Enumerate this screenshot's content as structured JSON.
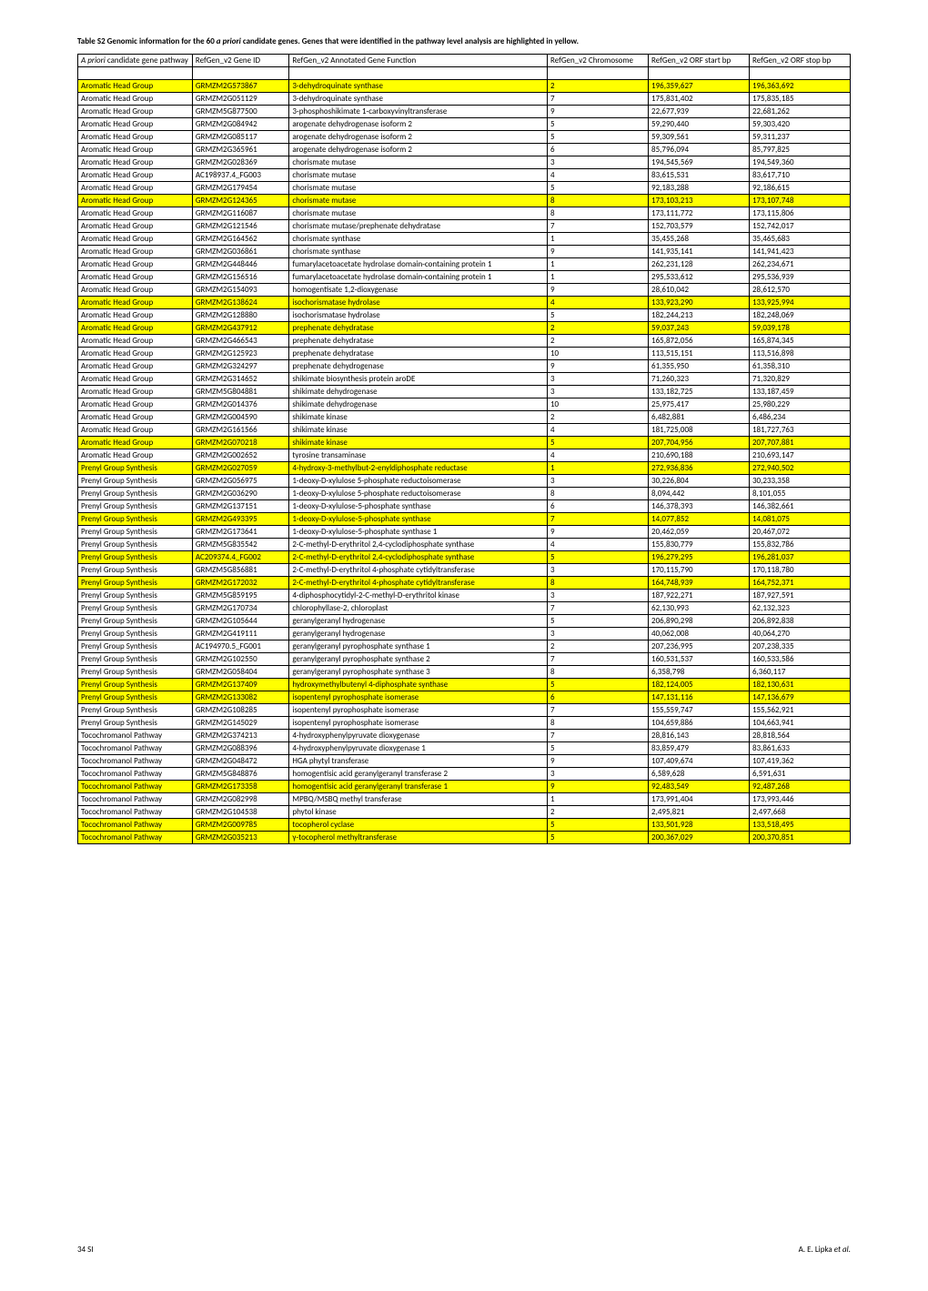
{
  "caption_prefix": "Table S2   Genomic information for the 60 ",
  "caption_italic1": "a priori",
  "caption_suffix": " candidate genes. Genes that were identified in the pathway level analysis are highlighted in yellow.",
  "headers": {
    "pathway_prefix": "A priori",
    "pathway_suffix": " candidate gene pathway",
    "geneid": "RefGen_v2 Gene ID",
    "function": "RefGen_v2 Annotated Gene Function",
    "chrom": "RefGen_v2  Chromosome",
    "start": "RefGen_v2 ORF start bp",
    "stop": "RefGen_v2 ORF stop bp"
  },
  "rows": [
    {
      "pathway": "Aromatic Head Group",
      "geneid": "GRMZM2G573867",
      "function": "3-dehydroquinate synthase",
      "chrom": "2",
      "start": "196,359,627",
      "stop": "196,363,692",
      "hl": true
    },
    {
      "pathway": "Aromatic Head Group",
      "geneid": "GRMZM2G051129",
      "function": "3-dehydroquinate synthase",
      "chrom": "7",
      "start": "175,831,402",
      "stop": "175,835,185",
      "hl": false
    },
    {
      "pathway": "Aromatic Head Group",
      "geneid": "GRMZM5G877500",
      "function": "3-phosphoshikimate 1-carboxyvinyltransferase",
      "chrom": "9",
      "start": "22,677,939",
      "stop": "22,681,262",
      "hl": false
    },
    {
      "pathway": "Aromatic Head Group",
      "geneid": "GRMZM2G084942",
      "function": "arogenate dehydrogenase isoform 2",
      "chrom": "5",
      "start": "59,290,440",
      "stop": "59,303,420",
      "hl": false
    },
    {
      "pathway": "Aromatic Head Group",
      "geneid": "GRMZM2G085117",
      "function": "arogenate dehydrogenase isoform 2",
      "chrom": "5",
      "start": "59,309,561",
      "stop": "59,311,237",
      "hl": false
    },
    {
      "pathway": "Aromatic Head Group",
      "geneid": "GRMZM2G365961",
      "function": "arogenate dehydrogenase isoform 2",
      "chrom": "6",
      "start": "85,796,094",
      "stop": "85,797,825",
      "hl": false
    },
    {
      "pathway": "Aromatic Head Group",
      "geneid": "GRMZM2G028369",
      "function": "chorismate mutase",
      "chrom": "3",
      "start": "194,545,569",
      "stop": "194,549,360",
      "hl": false
    },
    {
      "pathway": "Aromatic Head Group",
      "geneid": "AC198937.4_FG003",
      "function": "chorismate mutase",
      "chrom": "4",
      "start": "83,615,531",
      "stop": "83,617,710",
      "hl": false
    },
    {
      "pathway": "Aromatic Head Group",
      "geneid": "GRMZM2G179454",
      "function": "chorismate mutase",
      "chrom": "5",
      "start": "92,183,288",
      "stop": "92,186,615",
      "hl": false
    },
    {
      "pathway": "Aromatic Head Group",
      "geneid": "GRMZM2G124365",
      "function": "chorismate mutase",
      "chrom": "8",
      "start": "173,103,213",
      "stop": "173,107,748",
      "hl": true
    },
    {
      "pathway": "Aromatic Head Group",
      "geneid": "GRMZM2G116087",
      "function": "chorismate mutase",
      "chrom": "8",
      "start": "173,111,772",
      "stop": "173,115,806",
      "hl": false
    },
    {
      "pathway": "Aromatic Head Group",
      "geneid": "GRMZM2G121546",
      "function": "chorismate mutase/prephenate dehydratase",
      "chrom": "7",
      "start": "152,703,579",
      "stop": "152,742,017",
      "hl": false
    },
    {
      "pathway": "Aromatic Head Group",
      "geneid": "GRMZM2G164562",
      "function": "chorismate synthase",
      "chrom": "1",
      "start": "35,455,268",
      "stop": "35,465,683",
      "hl": false
    },
    {
      "pathway": "Aromatic Head Group",
      "geneid": "GRMZM2G036861",
      "function": "chorismate synthase",
      "chrom": "9",
      "start": "141,935,141",
      "stop": "141,941,423",
      "hl": false
    },
    {
      "pathway": "Aromatic Head Group",
      "geneid": "GRMZM2G448446",
      "function": "fumarylacetoacetate hydrolase domain-containing protein 1",
      "chrom": "1",
      "start": "262,231,128",
      "stop": "262,234,671",
      "hl": false
    },
    {
      "pathway": "Aromatic Head Group",
      "geneid": "GRMZM2G156516",
      "function": "fumarylacetoacetate hydrolase domain-containing protein 1",
      "chrom": "1",
      "start": "295,533,612",
      "stop": "295,536,939",
      "hl": false
    },
    {
      "pathway": "Aromatic Head Group",
      "geneid": "GRMZM2G154093",
      "function": "homogentisate 1,2-dioxygenase",
      "chrom": "9",
      "start": "28,610,042",
      "stop": "28,612,570",
      "hl": false
    },
    {
      "pathway": "Aromatic Head Group",
      "geneid": "GRMZM2G138624",
      "function": "isochorismatase hydrolase",
      "chrom": "4",
      "start": "133,923,290",
      "stop": "133,925,994",
      "hl": true
    },
    {
      "pathway": "Aromatic Head Group",
      "geneid": "GRMZM2G128880",
      "function": "isochorismatase hydrolase",
      "chrom": "5",
      "start": "182,244,213",
      "stop": "182,248,069",
      "hl": false
    },
    {
      "pathway": "Aromatic Head Group",
      "geneid": "GRMZM2G437912",
      "function": "prephenate dehydratase",
      "chrom": "2",
      "start": "59,037,243",
      "stop": "59,039,178",
      "hl": true
    },
    {
      "pathway": "Aromatic Head Group",
      "geneid": "GRMZM2G466543",
      "function": "prephenate dehydratase",
      "chrom": "2",
      "start": "165,872,056",
      "stop": "165,874,345",
      "hl": false
    },
    {
      "pathway": "Aromatic Head Group",
      "geneid": "GRMZM2G125923",
      "function": "prephenate dehydratase",
      "chrom": "10",
      "start": "113,515,151",
      "stop": "113,516,898",
      "hl": false
    },
    {
      "pathway": "Aromatic Head Group",
      "geneid": "GRMZM2G324297",
      "function": "prephenate dehydrogenase",
      "chrom": "9",
      "start": "61,355,950",
      "stop": "61,358,310",
      "hl": false
    },
    {
      "pathway": "Aromatic Head Group",
      "geneid": "GRMZM2G314652",
      "function": "shikimate biosynthesis protein aroDE",
      "chrom": "3",
      "start": "71,260,323",
      "stop": "71,320,829",
      "hl": false
    },
    {
      "pathway": "Aromatic Head Group",
      "geneid": "GRMZM5G804881",
      "function": "shikimate dehydrogenase",
      "chrom": "3",
      "start": "133,182,725",
      "stop": "133,187,459",
      "hl": false
    },
    {
      "pathway": "Aromatic Head Group",
      "geneid": "GRMZM2G014376",
      "function": "shikimate dehydrogenase",
      "chrom": "10",
      "start": "25,975,417",
      "stop": "25,980,229",
      "hl": false
    },
    {
      "pathway": "Aromatic Head Group",
      "geneid": "GRMZM2G004590",
      "function": "shikimate kinase",
      "chrom": "2",
      "start": "6,482,881",
      "stop": "6,486,234",
      "hl": false
    },
    {
      "pathway": "Aromatic Head Group",
      "geneid": "GRMZM2G161566",
      "function": "shikimate kinase",
      "chrom": "4",
      "start": "181,725,008",
      "stop": "181,727,763",
      "hl": false
    },
    {
      "pathway": "Aromatic Head Group",
      "geneid": "GRMZM2G070218",
      "function": "shikimate kinase",
      "chrom": "5",
      "start": "207,704,956",
      "stop": "207,707,881",
      "hl": true
    },
    {
      "pathway": "Aromatic Head Group",
      "geneid": "GRMZM2G002652",
      "function": "tyrosine transaminase",
      "chrom": "4",
      "start": "210,690,188",
      "stop": "210,693,147",
      "hl": false
    },
    {
      "pathway": "Prenyl Group Synthesis",
      "geneid": "GRMZM2G027059",
      "function": "4-hydroxy-3-methylbut-2-enyldiphosphate reductase",
      "chrom": "1",
      "start": "272,936,836",
      "stop": "272,940,502",
      "hl": true
    },
    {
      "pathway": "Prenyl Group Synthesis",
      "geneid": "GRMZM2G056975",
      "function": "1-deoxy-D-xylulose 5-phosphate reductoisomerase",
      "chrom": "3",
      "start": "30,226,804",
      "stop": "30,233,358",
      "hl": false
    },
    {
      "pathway": "Prenyl Group Synthesis",
      "geneid": "GRMZM2G036290",
      "function": "1-deoxy-D-xylulose 5-phosphate reductoisomerase",
      "chrom": "8",
      "start": "8,094,442",
      "stop": "8,101,055",
      "hl": false
    },
    {
      "pathway": "Prenyl Group Synthesis",
      "geneid": "GRMZM2G137151",
      "function": "1-deoxy-D-xylulose-5-phosphate synthase",
      "chrom": "6",
      "start": "146,378,393",
      "stop": "146,382,661",
      "hl": false
    },
    {
      "pathway": "Prenyl Group Synthesis",
      "geneid": "GRMZM2G493395",
      "function": "1-deoxy-D-xylulose-5-phosphate synthase",
      "chrom": "7",
      "start": "14,077,852",
      "stop": "14,081,075",
      "hl": true
    },
    {
      "pathway": "Prenyl Group Synthesis",
      "geneid": "GRMZM2G173641",
      "function": "1-deoxy-D-xylulose-5-phosphate synthase 1",
      "chrom": "9",
      "start": "20,462,059",
      "stop": "20,467,072",
      "hl": false
    },
    {
      "pathway": "Prenyl Group Synthesis",
      "geneid": "GRMZM5G835542",
      "function": "2-C-methyl-D-erythritol 2,4-cyclodiphosphate synthase",
      "chrom": "4",
      "start": "155,830,779",
      "stop": "155,832,786",
      "hl": false
    },
    {
      "pathway": "Prenyl Group Synthesis",
      "geneid": "AC209374.4_FG002",
      "function": "2-C-methyl-D-erythritol 2,4-cyclodiphosphate synthase",
      "chrom": "5",
      "start": "196,279,295",
      "stop": "196,281,037",
      "hl": true
    },
    {
      "pathway": "Prenyl Group Synthesis",
      "geneid": "GRMZM5G856881",
      "function": "2-C-methyl-D-erythritol 4-phosphate cytidyltransferase",
      "chrom": "3",
      "start": "170,115,790",
      "stop": "170,118,780",
      "hl": false
    },
    {
      "pathway": "Prenyl Group Synthesis",
      "geneid": "GRMZM2G172032",
      "function": "2-C-methyl-D-erythritol 4-phosphate cytidyltransferase",
      "chrom": "8",
      "start": "164,748,939",
      "stop": "164,752,371",
      "hl": true
    },
    {
      "pathway": "Prenyl Group Synthesis",
      "geneid": "GRMZM5G859195",
      "function": "4-diphosphocytidyl-2-C-methyl-D-erythritol kinase",
      "chrom": "3",
      "start": "187,922,271",
      "stop": "187,927,591",
      "hl": false
    },
    {
      "pathway": "Prenyl Group Synthesis",
      "geneid": "GRMZM2G170734",
      "function": "chlorophyllase-2, chloroplast",
      "chrom": "7",
      "start": "62,130,993",
      "stop": "62,132,323",
      "hl": false
    },
    {
      "pathway": "Prenyl Group Synthesis",
      "geneid": "GRMZM2G105644",
      "function": "geranylgeranyl hydrogenase",
      "chrom": "5",
      "start": "206,890,298",
      "stop": "206,892,838",
      "hl": false
    },
    {
      "pathway": "Prenyl Group Synthesis",
      "geneid": "GRMZM2G419111",
      "function": "geranylgeranyl hydrogenase",
      "chrom": "3",
      "start": "40,062,008",
      "stop": "40,064,270",
      "hl": false
    },
    {
      "pathway": "Prenyl Group Synthesis",
      "geneid": "AC194970.5_FG001",
      "function": "geranylgeranyl pyrophosphate synthase 1",
      "chrom": "2",
      "start": "207,236,995",
      "stop": "207,238,335",
      "hl": false
    },
    {
      "pathway": "Prenyl Group Synthesis",
      "geneid": "GRMZM2G102550",
      "function": "geranylgeranyl pyrophosphate synthase 2",
      "chrom": "7",
      "start": "160,531,537",
      "stop": "160,533,586",
      "hl": false
    },
    {
      "pathway": "Prenyl Group Synthesis",
      "geneid": "GRMZM2G058404",
      "function": "geranylgeranyl pyrophosphate synthase 3",
      "chrom": "8",
      "start": "6,358,798",
      "stop": "6,360,117",
      "hl": false
    },
    {
      "pathway": "Prenyl Group Synthesis",
      "geneid": "GRMZM2G137409",
      "function": "hydroxymethylbutenyl 4-diphosphate synthase",
      "chrom": "5",
      "start": "182,124,005",
      "stop": "182,130,631",
      "hl": true
    },
    {
      "pathway": "Prenyl Group Synthesis",
      "geneid": "GRMZM2G133082",
      "function": "isopentenyl pyrophosphate isomerase",
      "chrom": "6",
      "start": "147,131,116",
      "stop": "147,136,679",
      "hl": true
    },
    {
      "pathway": "Prenyl Group Synthesis",
      "geneid": "GRMZM2G108285",
      "function": "isopentenyl pyrophosphate isomerase",
      "chrom": "7",
      "start": "155,559,747",
      "stop": "155,562,921",
      "hl": false
    },
    {
      "pathway": "Prenyl Group Synthesis",
      "geneid": "GRMZM2G145029",
      "function": "isopentenyl pyrophosphate isomerase",
      "chrom": "8",
      "start": "104,659,886",
      "stop": "104,663,941",
      "hl": false
    },
    {
      "pathway": "Tocochromanol Pathway",
      "geneid": "GRMZM2G374213",
      "function": "4-hydroxyphenylpyruvate dioxygenase",
      "chrom": "7",
      "start": "28,816,143",
      "stop": "28,818,564",
      "hl": false
    },
    {
      "pathway": "Tocochromanol Pathway",
      "geneid": "GRMZM2G088396",
      "function": "4-hydroxyphenylpyruvate dioxygenase 1",
      "chrom": "5",
      "start": "83,859,479",
      "stop": "83,861,633",
      "hl": false
    },
    {
      "pathway": "Tocochromanol Pathway",
      "geneid": "GRMZM2G048472",
      "function": "HGA phytyl transferase",
      "chrom": "9",
      "start": "107,409,674",
      "stop": "107,419,362",
      "hl": false
    },
    {
      "pathway": "Tocochromanol Pathway",
      "geneid": "GRMZM5G848876",
      "function": "homogentisic acid geranylgeranyl transferase 2",
      "chrom": "3",
      "start": "6,589,628",
      "stop": "6,591,631",
      "hl": false
    },
    {
      "pathway": "Tocochromanol Pathway",
      "geneid": "GRMZM2G173358",
      "function": "homogentisic acid geranylgeranyl transferase 1",
      "chrom": "9",
      "start": "92,483,549",
      "stop": "92,487,268",
      "hl": true
    },
    {
      "pathway": "Tocochromanol Pathway",
      "geneid": "GRMZM2G082998",
      "function": "MPBQ/MSBQ methyl transferase",
      "chrom": "1",
      "start": "173,991,404",
      "stop": "173,993,446",
      "hl": false
    },
    {
      "pathway": "Tocochromanol Pathway",
      "geneid": "GRMZM2G104538",
      "function": "phytol kinase",
      "chrom": "2",
      "start": "2,495,821",
      "stop": "2,497,668",
      "hl": false
    },
    {
      "pathway": "Tocochromanol Pathway",
      "geneid": "GRMZM2G009785",
      "function": "tocopherol cyclase",
      "chrom": "5",
      "start": "133,501,928",
      "stop": "133,518,495",
      "hl": true
    },
    {
      "pathway": "Tocochromanol Pathway",
      "geneid": "GRMZM2G035213",
      "function": "γ-tocopherol methyltransferase",
      "chrom": "5",
      "start": "200,367,029",
      "stop": "200,370,851",
      "hl": true
    }
  ],
  "footer": {
    "left": "34 SI",
    "right_prefix": "A. E. Lipka ",
    "right_italic": "et al."
  }
}
